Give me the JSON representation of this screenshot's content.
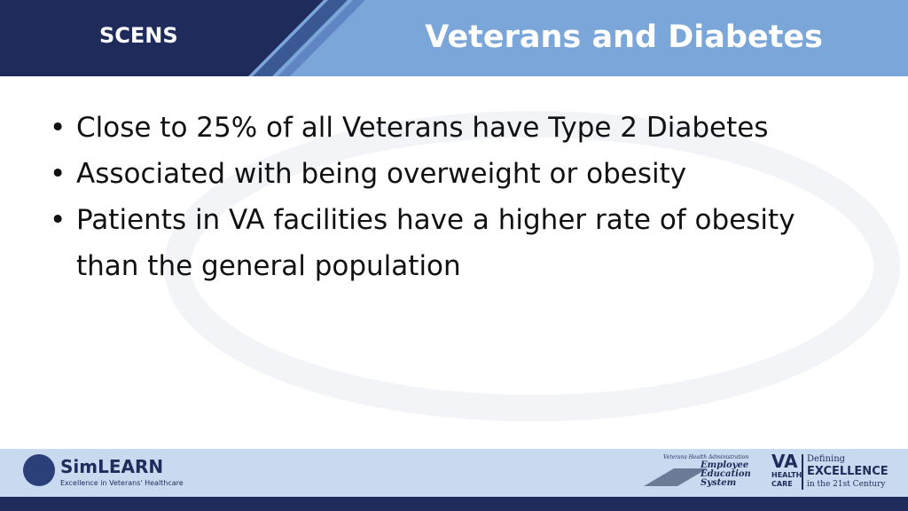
{
  "header": {
    "section": "SCENS",
    "title": "Veterans and Diabetes"
  },
  "bullets": [
    "Close to 25% of all Veterans have Type 2 Diabetes",
    "Associated with being overweight or obesity",
    "Patients in VA facilities have a higher rate of obesity than the general population"
  ],
  "footer": {
    "simlearn": {
      "name": "SimLEARN",
      "tagline": "Excellence in Veterans' Healthcare"
    },
    "ees": {
      "org": "Veterans Health Administration",
      "name": "Employee Education System"
    },
    "va": {
      "mark": "VA",
      "sub": "HEALTH CARE",
      "defining": "Defining",
      "excellence": "EXCELLENCE",
      "century": "in the 21st Century"
    }
  }
}
